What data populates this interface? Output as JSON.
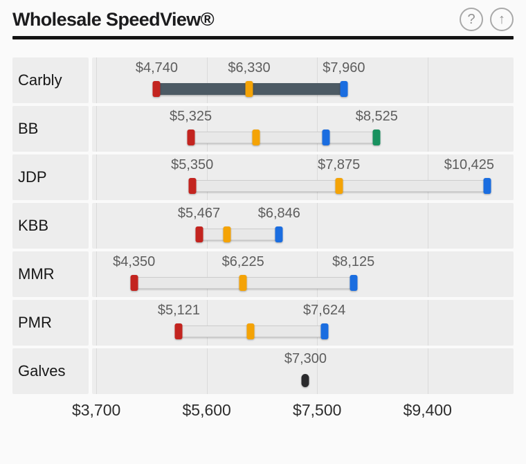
{
  "header": {
    "title": "Wholesale SpeedView®",
    "help_glyph": "?",
    "scroll_top_glyph": "↑"
  },
  "colors": {
    "red": "#c3241f",
    "orange": "#f4a306",
    "blue": "#1a6de0",
    "green": "#18915f",
    "black": "#2a2a2c",
    "filled_bar": "#4c5a64",
    "row_bg": "#ededed",
    "rule": "#141414"
  },
  "chart_data": {
    "type": "range-bar",
    "title": "Wholesale SpeedView®",
    "unit": "USD",
    "grid": true,
    "axis": {
      "min": 3627,
      "max": 10879,
      "ticks": [
        3700,
        5600,
        7500,
        9400
      ],
      "tick_labels": [
        "$3,700",
        "$5,600",
        "$7,500",
        "$9,400"
      ]
    },
    "rows": [
      {
        "label": "Carbly",
        "bar_style": "filled",
        "markers": [
          {
            "value": 4740,
            "label": "$4,740",
            "color": "red"
          },
          {
            "value": 6330,
            "label": "$6,330",
            "color": "orange"
          },
          {
            "value": 7960,
            "label": "$7,960",
            "color": "blue"
          }
        ]
      },
      {
        "label": "BB",
        "bar_style": "track",
        "markers": [
          {
            "value": 5325,
            "label": "$5,325",
            "color": "red"
          },
          {
            "value": 6450,
            "label": "",
            "color": "orange"
          },
          {
            "value": 7650,
            "label": "",
            "color": "blue"
          },
          {
            "value": 8525,
            "label": "$8,525",
            "color": "green"
          }
        ]
      },
      {
        "label": "JDP",
        "bar_style": "track",
        "markers": [
          {
            "value": 5350,
            "label": "$5,350",
            "color": "red"
          },
          {
            "value": 7875,
            "label": "$7,875",
            "color": "orange"
          },
          {
            "value": 10425,
            "label": "$10,425",
            "color": "blue",
            "label_shift": -26
          }
        ]
      },
      {
        "label": "KBB",
        "bar_style": "track",
        "markers": [
          {
            "value": 5467,
            "label": "$5,467",
            "color": "red"
          },
          {
            "value": 5950,
            "label": "",
            "color": "orange"
          },
          {
            "value": 6846,
            "label": "$6,846",
            "color": "blue"
          }
        ]
      },
      {
        "label": "MMR",
        "bar_style": "track",
        "markers": [
          {
            "value": 4350,
            "label": "$4,350",
            "color": "red"
          },
          {
            "value": 6225,
            "label": "$6,225",
            "color": "orange"
          },
          {
            "value": 8125,
            "label": "$8,125",
            "color": "blue"
          }
        ]
      },
      {
        "label": "PMR",
        "bar_style": "track",
        "markers": [
          {
            "value": 5121,
            "label": "$5,121",
            "color": "red"
          },
          {
            "value": 6350,
            "label": "",
            "color": "orange"
          },
          {
            "value": 7624,
            "label": "$7,624",
            "color": "blue"
          }
        ]
      },
      {
        "label": "Galves",
        "bar_style": "none",
        "markers": [
          {
            "value": 7300,
            "label": "$7,300",
            "color": "black"
          }
        ]
      }
    ]
  }
}
